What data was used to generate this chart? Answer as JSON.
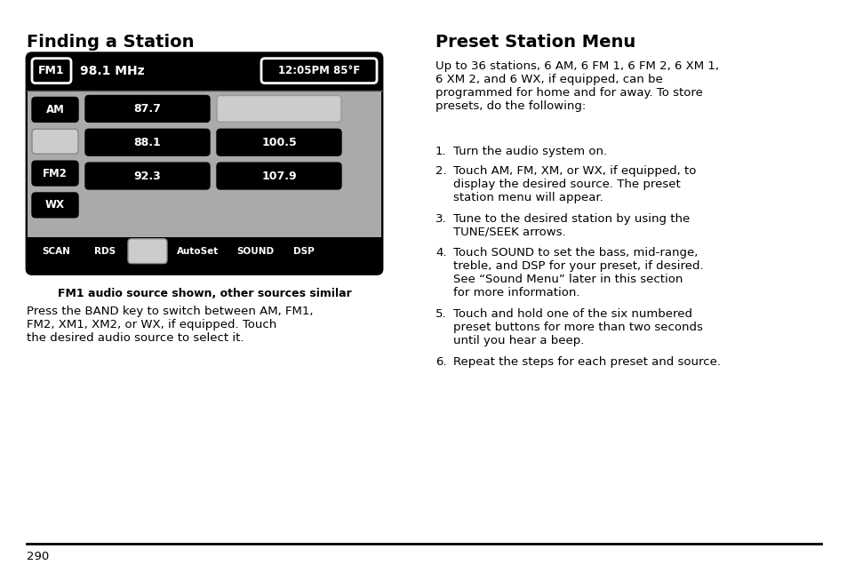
{
  "page_number": "290",
  "bg_color": "#ffffff",
  "left_title": "Finding a Station",
  "right_title": "Preset Station Menu",
  "left_body1": "Press the BAND key to switch between AM, FM1,\nFM2, XM1, XM2, or WX, if equipped. Touch\nthe desired audio source to select it.",
  "caption": "FM1 audio source shown, other sources similar",
  "right_intro": "Up to 36 stations, 6 AM, 6 FM 1, 6 FM 2, 6 XM 1,\n6 XM 2, and 6 WX, if equipped, can be\nprogrammed for home and for away. To store\npresets, do the following:",
  "steps": [
    "Turn the audio system on.",
    "Touch AM, FM, XM, or WX, if equipped, to\ndisplay the desired source. The preset\nstation menu will appear.",
    "Tune to the desired station by using the\nTUNE/SEEK arrows.",
    "Touch SOUND to set the bass, mid-range,\ntreble, and DSP for your preset, if desired.\nSee “Sound Menu” later in this section\nfor more information.",
    "Touch and hold one of the six numbered\npreset buttons for more than two seconds\nuntil you hear a beep.",
    "Repeat the steps for each preset and source."
  ],
  "display_bg": "#000000",
  "display_fg": "#ffffff",
  "display_gray": "#888888",
  "display_border": "#000000",
  "header_text": "FM1",
  "freq_text": "98.1 MHz",
  "time_text": "12:05PM 85°F",
  "left_buttons": [
    "AM",
    "",
    "FM2",
    "WX"
  ],
  "station_left": [
    "87.7",
    "88.1",
    "92.3"
  ],
  "station_right": [
    "",
    "100.5",
    "107.9"
  ],
  "bottom_buttons": [
    "SCAN",
    "RDS",
    "",
    "AutoSet",
    "SOUND",
    "DSP"
  ]
}
